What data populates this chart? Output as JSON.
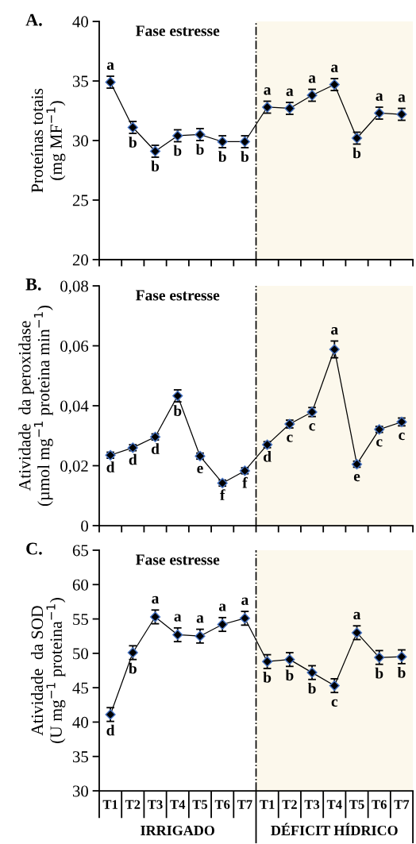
{
  "chart_data": [
    {
      "type": "line",
      "title": "A.",
      "ylabel": "Proteínas totais\n(mg MF$^{−1}$)",
      "categories": [
        "T1",
        "T2",
        "T3",
        "T4",
        "T5",
        "T6",
        "T7",
        "T1",
        "T2",
        "T3",
        "T4",
        "T5",
        "T6",
        "T7"
      ],
      "ylim": [
        20,
        40
      ],
      "yticks": [
        20,
        25,
        30,
        35,
        40
      ],
      "tick_labels": "y",
      "series": [
        {
          "color": "#000000",
          "values": [
            34.9,
            31.1,
            29.1,
            30.4,
            30.5,
            29.9,
            29.9,
            32.8,
            32.7,
            33.8,
            34.7,
            30.2,
            32.3,
            32.2
          ],
          "errors": [
            0.5,
            0.5,
            0.5,
            0.5,
            0.5,
            0.5,
            0.5,
            0.5,
            0.5,
            0.5,
            0.5,
            0.5,
            0.5,
            0.5
          ],
          "value_labels": [
            "a",
            "b",
            "b",
            "b",
            "b",
            "b",
            "b",
            "a",
            "a",
            "a",
            "a",
            "b",
            "a",
            "a"
          ]
        }
      ],
      "marker": "diamond",
      "line_style": "solid",
      "annotations": [
        "Fase estresse"
      ]
    },
    {
      "type": "line",
      "title": "B.",
      "ylabel": "Atividade  da peroxidase\n(µmol mg$^{−1}$ proteina min$^{−1}$)",
      "categories": [
        "T1",
        "T2",
        "T3",
        "T4",
        "T5",
        "T6",
        "T7",
        "T1",
        "T2",
        "T3",
        "T4",
        "T5",
        "T6",
        "T7"
      ],
      "ylim": [
        0,
        0.08
      ],
      "yticks": [
        0,
        {
          "value": 0.02,
          "label": "0,02"
        },
        {
          "value": 0.04,
          "label": "0,04"
        },
        {
          "value": 0.06,
          "label": "0,06"
        },
        {
          "value": 0.08,
          "label": "0,08"
        }
      ],
      "tick_labels": "y",
      "series": [
        {
          "color": "#000000",
          "values": [
            0.0235,
            0.026,
            0.0296,
            0.0433,
            0.0232,
            0.0142,
            0.0183,
            0.027,
            0.0339,
            0.0379,
            0.0588,
            0.0205,
            0.0321,
            0.0346
          ],
          "errors": [
            0.001,
            0.001,
            0.001,
            0.002,
            0.001,
            0.001,
            0.001,
            0.001,
            0.0013,
            0.0015,
            0.0028,
            0.001,
            0.001,
            0.0013
          ],
          "value_labels": [
            "d",
            "d",
            "d",
            "b",
            "e",
            "f",
            "f",
            "d",
            "c",
            "c",
            "a",
            "e",
            "c",
            "c"
          ]
        }
      ],
      "marker": "diamond",
      "line_style": "solid",
      "annotations": [
        "Fase estresse"
      ]
    },
    {
      "type": "line",
      "title": "C.",
      "ylabel": "Atividade  da SOD\n(U mg$^{−1}$ proteina$^{−1}$)",
      "categories": [
        "T1",
        "T2",
        "T3",
        "T4",
        "T5",
        "T6",
        "T7",
        "T1",
        "T2",
        "T3",
        "T4",
        "T5",
        "T6",
        "T7"
      ],
      "ylim": [
        30,
        65
      ],
      "yticks": [
        30,
        35,
        40,
        45,
        50,
        55,
        60,
        65
      ],
      "series": [
        {
          "color": "#000000",
          "values": [
            41.1,
            50.1,
            55.3,
            52.7,
            52.5,
            54.2,
            55.1,
            48.8,
            49.1,
            47.2,
            45.3,
            53.0,
            49.4,
            49.5
          ],
          "errors": [
            1.0,
            1.0,
            1.0,
            1.0,
            1.0,
            1.0,
            1.0,
            1.0,
            1.0,
            1.0,
            1.0,
            1.0,
            1.0,
            1.0
          ],
          "value_labels": [
            "d",
            "b",
            "a",
            "a",
            "a",
            "a",
            "a",
            "b",
            "b",
            "b",
            "c",
            "a",
            "b",
            "b"
          ]
        }
      ],
      "marker": "diamond",
      "line_style": "solid",
      "annotations": [
        "Fase estresse",
        "IRRIGADO",
        "DÉFICIT HÍDRICO"
      ]
    }
  ]
}
